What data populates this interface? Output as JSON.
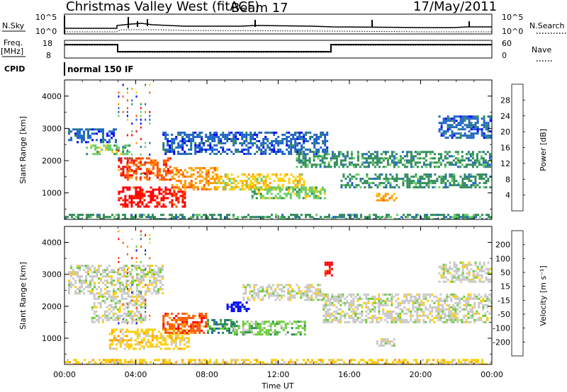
{
  "header": {
    "title": "Christmas Valley West (fitACF)",
    "beam": "Beam 17",
    "date": "17/May/2011"
  },
  "noise_panel": {
    "left_label": "N.Sky",
    "left_ticks": [
      "10^5",
      "10^0"
    ],
    "right_ticks": [
      "10^5",
      "10^0"
    ],
    "right_label": "N.Search"
  },
  "freq_panel": {
    "left_label_1": "Freq.",
    "left_label_2": "[MHz]",
    "left_ticks": [
      "18",
      "8"
    ],
    "right_ticks": [
      "60",
      "0"
    ],
    "right_label": "Nave",
    "cpid_label": "CPID",
    "program": "normal 150 IF"
  },
  "colors": {
    "power_scale": [
      "#0000ff",
      "#1e64c8",
      "#2e8b57",
      "#66cc66",
      "#ffcc00",
      "#ff9900",
      "#ff5500",
      "#ff0000"
    ],
    "velocity_scale": [
      "#0000ff",
      "#2060c0",
      "#2e8b57",
      "#66cc33",
      "#c8c8c8",
      "#ffcc00",
      "#ff9900",
      "#ff5500",
      "#ff0000"
    ]
  },
  "chart_data": [
    {
      "type": "heatmap",
      "name": "power",
      "ylabel": "Slant Range [km]",
      "yticks": [
        "4000",
        "3000",
        "2000",
        "1000"
      ],
      "ylim": [
        180,
        4500
      ],
      "colorbar_label": "Power [dB]",
      "colorbar_ticks": [
        "28",
        "24",
        "20",
        "16",
        "12",
        "8",
        "4"
      ],
      "regions": [
        {
          "t0": 0.2,
          "t1": 3.0,
          "r0": 2550,
          "r1": 3000,
          "level": 1
        },
        {
          "t0": 1.2,
          "t1": 3.6,
          "r0": 2200,
          "r1": 2500,
          "level": 3
        },
        {
          "t0": 3.0,
          "t1": 4.0,
          "r0": 1500,
          "r1": 2100,
          "level": 7
        },
        {
          "t0": 3.5,
          "t1": 6.0,
          "r0": 1400,
          "r1": 2100,
          "level": 6
        },
        {
          "t0": 3.0,
          "t1": 6.8,
          "r0": 600,
          "r1": 1200,
          "level": 7
        },
        {
          "t0": 6.0,
          "t1": 8.6,
          "r0": 1100,
          "r1": 1800,
          "level": 5
        },
        {
          "t0": 8.5,
          "t1": 13.5,
          "r0": 1100,
          "r1": 1600,
          "level": 4
        },
        {
          "t0": 10.5,
          "t1": 14.6,
          "r0": 850,
          "r1": 1200,
          "level": 3
        },
        {
          "t0": 5.5,
          "t1": 14.8,
          "r0": 2200,
          "r1": 2900,
          "level": 1
        },
        {
          "t0": 13.0,
          "t1": 15.0,
          "r0": 1800,
          "r1": 2300,
          "level": 2
        },
        {
          "t0": 15.0,
          "t1": 24.0,
          "r0": 1800,
          "r1": 2300,
          "level": 2
        },
        {
          "t0": 15.5,
          "t1": 24.0,
          "r0": 1200,
          "r1": 1600,
          "level": 2
        },
        {
          "t0": 17.5,
          "t1": 18.6,
          "r0": 750,
          "r1": 1000,
          "level": 5
        },
        {
          "t0": 21.0,
          "t1": 24.0,
          "r0": 2700,
          "r1": 3400,
          "level": 1
        },
        {
          "t0": 0.0,
          "t1": 24.0,
          "r0": 200,
          "r1": 350,
          "level": 2
        }
      ]
    },
    {
      "type": "heatmap",
      "name": "velocity",
      "ylabel": "Slant Range [km]",
      "yticks": [
        "4000",
        "3000",
        "2000",
        "1000"
      ],
      "ylim": [
        180,
        4500
      ],
      "colorbar_label": "Velocity [m s⁻¹]",
      "colorbar_ticks": [
        "200",
        "100",
        "50",
        "15",
        "-15",
        "-50",
        "-100",
        "-200"
      ],
      "xticks": [
        "00:00",
        "04:00",
        "08:00",
        "12:00",
        "16:00",
        "20:00",
        "00:00"
      ],
      "xlabel": "Time UT",
      "xlim": [
        0,
        24
      ],
      "regions": [
        {
          "t0": 0.2,
          "t1": 5.5,
          "r0": 2400,
          "r1": 3300,
          "level": 4
        },
        {
          "t0": 1.5,
          "t1": 4.5,
          "r0": 1500,
          "r1": 2400,
          "level": 4
        },
        {
          "t0": 2.5,
          "t1": 7.0,
          "r0": 700,
          "r1": 1300,
          "level": 5
        },
        {
          "t0": 5.5,
          "t1": 8.0,
          "r0": 1200,
          "r1": 1800,
          "level": 7
        },
        {
          "t0": 8.0,
          "t1": 9.5,
          "r0": 1200,
          "r1": 1600,
          "level": 2
        },
        {
          "t0": 9.5,
          "t1": 13.5,
          "r0": 1150,
          "r1": 1550,
          "level": 3
        },
        {
          "t0": 9.1,
          "t1": 10.4,
          "r0": 1850,
          "r1": 2150,
          "level": 0
        },
        {
          "t0": 10.0,
          "t1": 14.5,
          "r0": 2200,
          "r1": 2700,
          "level": 4
        },
        {
          "t0": 14.5,
          "t1": 24.0,
          "r0": 1500,
          "r1": 2400,
          "level": 4
        },
        {
          "t0": 17.5,
          "t1": 18.5,
          "r0": 800,
          "r1": 1000,
          "level": 4
        },
        {
          "t0": 21.0,
          "t1": 24.0,
          "r0": 2800,
          "r1": 3400,
          "level": 4
        },
        {
          "t0": 14.6,
          "t1": 15.0,
          "r0": 3000,
          "r1": 3400,
          "level": 8
        },
        {
          "t0": 0.0,
          "t1": 24.0,
          "r0": 200,
          "r1": 350,
          "level": 5
        }
      ]
    }
  ]
}
